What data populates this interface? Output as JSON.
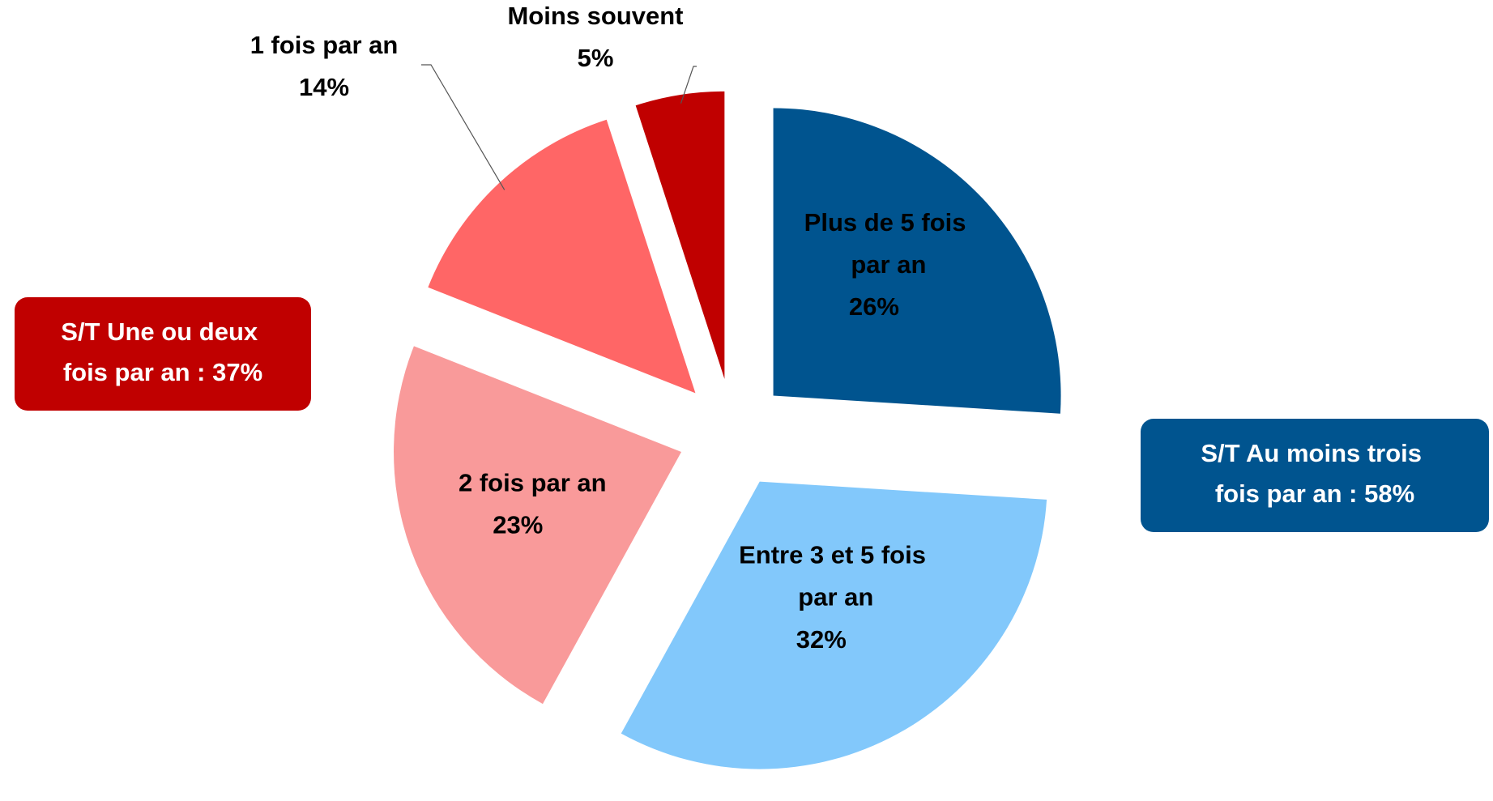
{
  "chart_data": {
    "type": "pie",
    "categories": [
      "Plus de 5 fois par an",
      "Entre 3 et 5 fois par an",
      "2 fois par an",
      "1 fois par an",
      "Moins souvent"
    ],
    "values": [
      26,
      32,
      23,
      14,
      5
    ],
    "value_labels": [
      "26%",
      "32%",
      "23%",
      "14%",
      "5%"
    ],
    "colors": [
      "#00548f",
      "#82c8fb",
      "#f99a9a",
      "#ff6666",
      "#c00000"
    ],
    "annotations": [
      {
        "text": "S/T Une ou deux fois par an : 37%",
        "color": "#c00000"
      },
      {
        "text": "S/T Au moins trois fois par an : 58%",
        "color": "#00548f"
      }
    ]
  }
}
